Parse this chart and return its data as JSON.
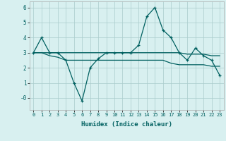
{
  "x": [
    0,
    1,
    2,
    3,
    4,
    5,
    6,
    7,
    8,
    9,
    10,
    11,
    12,
    13,
    14,
    15,
    16,
    17,
    18,
    19,
    20,
    21,
    22,
    23
  ],
  "y_main": [
    3.0,
    4.0,
    3.0,
    3.0,
    2.5,
    1.0,
    -0.2,
    2.0,
    2.6,
    3.0,
    3.0,
    3.0,
    3.0,
    3.5,
    5.4,
    6.0,
    4.5,
    4.0,
    3.0,
    2.5,
    3.3,
    2.8,
    2.5,
    1.5
  ],
  "y_line1": [
    3.0,
    3.0,
    3.0,
    3.0,
    3.0,
    3.0,
    3.0,
    3.0,
    3.0,
    3.0,
    3.0,
    3.0,
    3.0,
    3.0,
    3.0,
    3.0,
    3.0,
    3.0,
    3.0,
    2.9,
    2.9,
    2.9,
    2.8,
    2.8
  ],
  "y_line2": [
    3.0,
    3.0,
    2.8,
    2.7,
    2.5,
    2.5,
    2.5,
    2.5,
    2.5,
    2.5,
    2.5,
    2.5,
    2.5,
    2.5,
    2.5,
    2.5,
    2.5,
    2.3,
    2.2,
    2.2,
    2.2,
    2.2,
    2.1,
    2.1
  ],
  "color_main": "#006060",
  "bg_color": "#d8f0f0",
  "grid_color": "#aacccc",
  "xlabel": "Humidex (Indice chaleur)",
  "ylim": [
    -0.8,
    6.4
  ],
  "xlim": [
    -0.5,
    23.5
  ],
  "yticks": [
    0,
    1,
    2,
    3,
    4,
    5,
    6
  ],
  "ytick_labels": [
    "-0",
    "1",
    "2",
    "3",
    "4",
    "5",
    "6"
  ],
  "xticks": [
    0,
    1,
    2,
    3,
    4,
    5,
    6,
    7,
    8,
    9,
    10,
    11,
    12,
    13,
    14,
    15,
    16,
    17,
    18,
    19,
    20,
    21,
    22,
    23
  ],
  "xtick_labels": [
    "0",
    "1",
    "2",
    "3",
    "4",
    "5",
    "6",
    "7",
    "8",
    "9",
    "10",
    "11",
    "12",
    "13",
    "14",
    "15",
    "16",
    "17",
    "18",
    "19",
    "20",
    "21",
    "22",
    "23"
  ]
}
